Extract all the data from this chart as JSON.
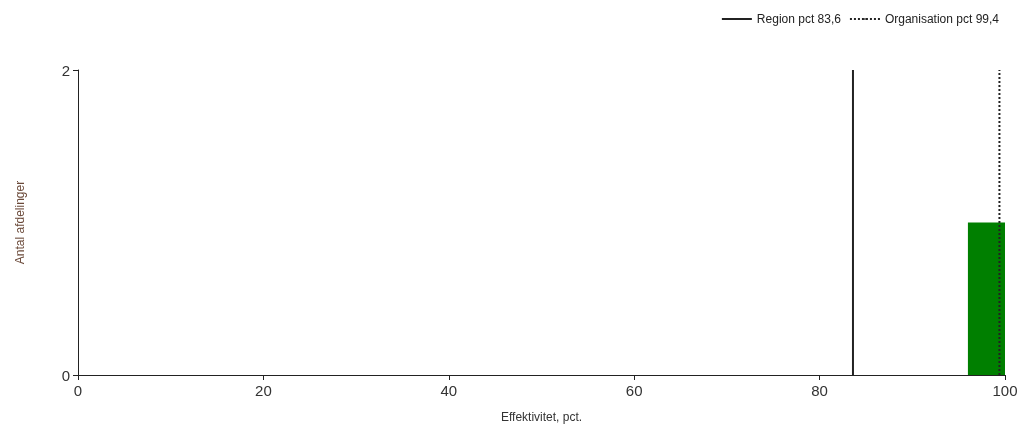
{
  "chart_data": {
    "type": "histogram",
    "xlabel": "Effektivitet, pct.",
    "ylabel": "Antal afdelinger",
    "bins": [
      96,
      100
    ],
    "values": [
      1
    ],
    "color": "#007f00",
    "xlim": [
      0,
      100
    ],
    "xticks": [
      0,
      20,
      40,
      60,
      80,
      100
    ],
    "ylim": [
      0,
      2
    ],
    "yticks": [
      0,
      2
    ],
    "legend": "top right",
    "ref_lines": [
      {
        "axis": "x",
        "value": 83.6,
        "label": "Region pct 83,6",
        "color": "#222222",
        "line_style": "solid"
      },
      {
        "axis": "x",
        "value": 99.4,
        "label": "Organisation pct 99,4",
        "color": "#222222",
        "line_style": "dotted"
      }
    ]
  }
}
